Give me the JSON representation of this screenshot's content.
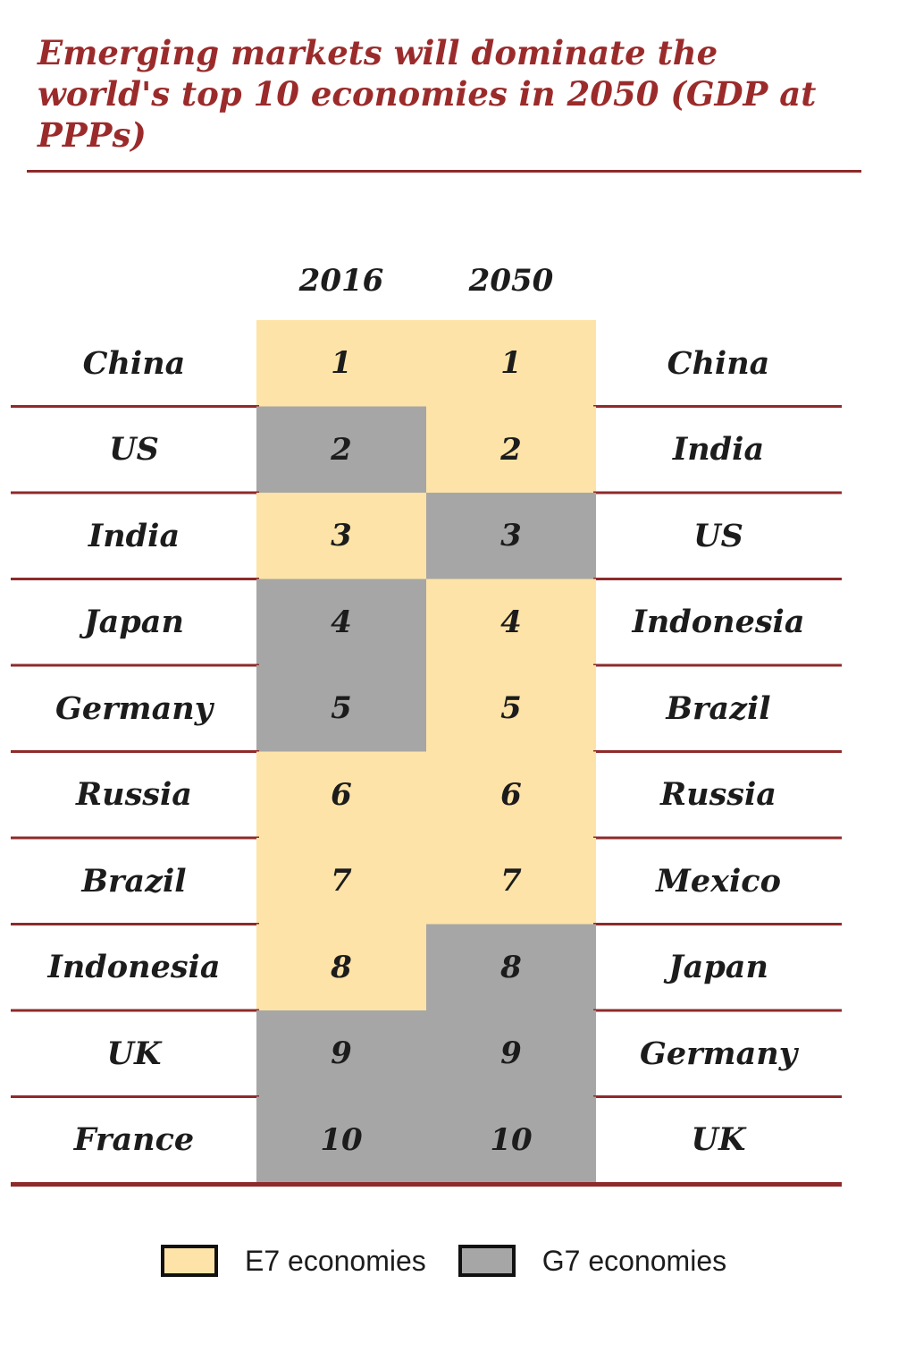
{
  "chart_data": {
    "type": "table",
    "title": "Emerging markets will dominate the world's top 10 economies in 2050 (GDP at PPPs)",
    "columns": [
      "2016",
      "2050"
    ],
    "rows": [
      {
        "rank": 1,
        "left_country": "China",
        "rank_2016": "1",
        "right_country": "China",
        "rank_2050": "1",
        "group_2016": "E7",
        "group_2050": "E7"
      },
      {
        "rank": 2,
        "left_country": "US",
        "rank_2016": "2",
        "right_country": "India",
        "rank_2050": "2",
        "group_2016": "G7",
        "group_2050": "E7"
      },
      {
        "rank": 3,
        "left_country": "India",
        "rank_2016": "3",
        "right_country": "US",
        "rank_2050": "3",
        "group_2016": "E7",
        "group_2050": "G7"
      },
      {
        "rank": 4,
        "left_country": "Japan",
        "rank_2016": "4",
        "right_country": "Indonesia",
        "rank_2050": "4",
        "group_2016": "G7",
        "group_2050": "E7"
      },
      {
        "rank": 5,
        "left_country": "Germany",
        "rank_2016": "5",
        "right_country": "Brazil",
        "rank_2050": "5",
        "group_2016": "G7",
        "group_2050": "E7"
      },
      {
        "rank": 6,
        "left_country": "Russia",
        "rank_2016": "6",
        "right_country": "Russia",
        "rank_2050": "6",
        "group_2016": "E7",
        "group_2050": "E7"
      },
      {
        "rank": 7,
        "left_country": "Brazil",
        "rank_2016": "7",
        "right_country": "Mexico",
        "rank_2050": "7",
        "group_2016": "E7",
        "group_2050": "E7"
      },
      {
        "rank": 8,
        "left_country": "Indonesia",
        "rank_2016": "8",
        "right_country": "Japan",
        "rank_2050": "8",
        "group_2016": "E7",
        "group_2050": "G7"
      },
      {
        "rank": 9,
        "left_country": "UK",
        "rank_2016": "9",
        "right_country": "Germany",
        "rank_2050": "9",
        "group_2016": "G7",
        "group_2050": "G7"
      },
      {
        "rank": 10,
        "left_country": "France",
        "rank_2016": "10",
        "right_country": "UK",
        "rank_2050": "10",
        "group_2016": "G7",
        "group_2050": "G7"
      }
    ],
    "legend": [
      {
        "group": "E7",
        "label": "E7 economies",
        "color": "#fde3a7"
      },
      {
        "group": "G7",
        "label": "G7 economies",
        "color": "#a6a6a6"
      }
    ]
  },
  "colors": {
    "title": "#9b2b2b",
    "rule": "#8e2a2a",
    "e7": "#fde3a7",
    "g7": "#a6a6a6",
    "text": "#1c1c1c"
  }
}
